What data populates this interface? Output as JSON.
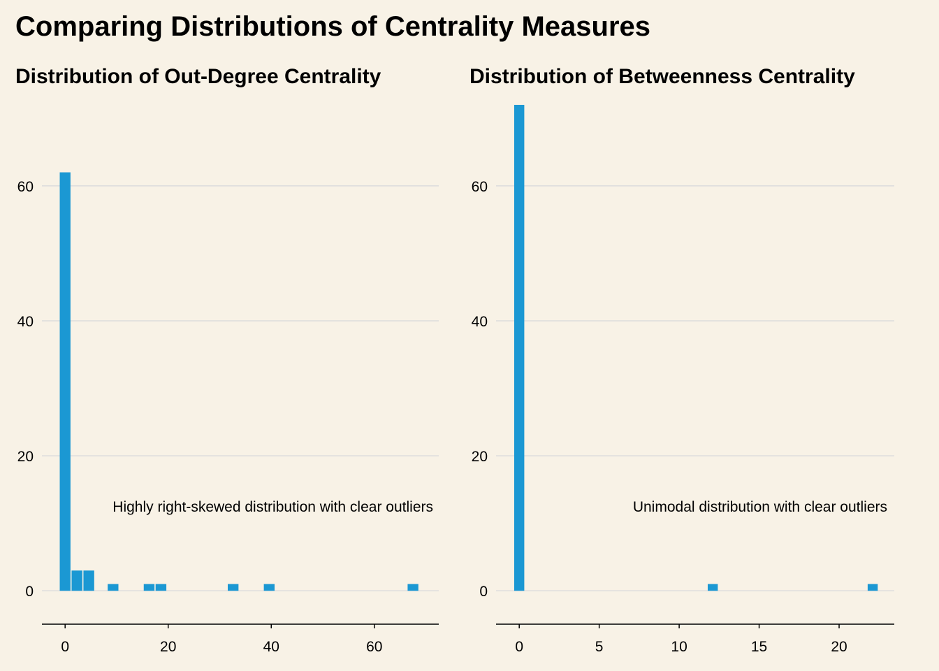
{
  "title": "Comparing Distributions of Centrality Measures",
  "colors": {
    "background": "#f8f2e6",
    "bar": "#1b98d3",
    "grid": "#dcdcdc",
    "axis": "#000000"
  },
  "chart_data": [
    {
      "type": "bar",
      "title": "Distribution of Out-Degree Centrality",
      "xlabel": "",
      "ylabel": "",
      "xlim": [
        -4.5,
        72.5
      ],
      "ylim": [
        -3.6,
        72
      ],
      "x_ticks": [
        0,
        20,
        40,
        60
      ],
      "y_ticks": [
        0,
        20,
        40,
        60
      ],
      "grid": "horizontal",
      "bin_width": 2.3,
      "bins": [
        {
          "x": 0,
          "count": 62
        },
        {
          "x": 2.3,
          "count": 3
        },
        {
          "x": 4.6,
          "count": 3
        },
        {
          "x": 9.3,
          "count": 1
        },
        {
          "x": 16.3,
          "count": 1
        },
        {
          "x": 18.6,
          "count": 1
        },
        {
          "x": 32.6,
          "count": 1
        },
        {
          "x": 39.6,
          "count": 1
        },
        {
          "x": 67.5,
          "count": 1
        }
      ],
      "annotation": "Highly right-skewed distribution with clear outliers"
    },
    {
      "type": "bar",
      "title": "Distribution of Betweenness Centrality",
      "xlabel": "",
      "ylabel": "",
      "xlim": [
        -1.45,
        23.45
      ],
      "ylim": [
        -3.6,
        72
      ],
      "x_ticks": [
        0,
        5,
        10,
        15,
        20
      ],
      "y_ticks": [
        0,
        20,
        40,
        60
      ],
      "grid": "horizontal",
      "bin_width": 0.7,
      "bins": [
        {
          "x": 0,
          "count": 72
        },
        {
          "x": 12.1,
          "count": 1
        },
        {
          "x": 22.1,
          "count": 1
        }
      ],
      "annotation": "Unimodal distribution with clear outliers"
    }
  ]
}
